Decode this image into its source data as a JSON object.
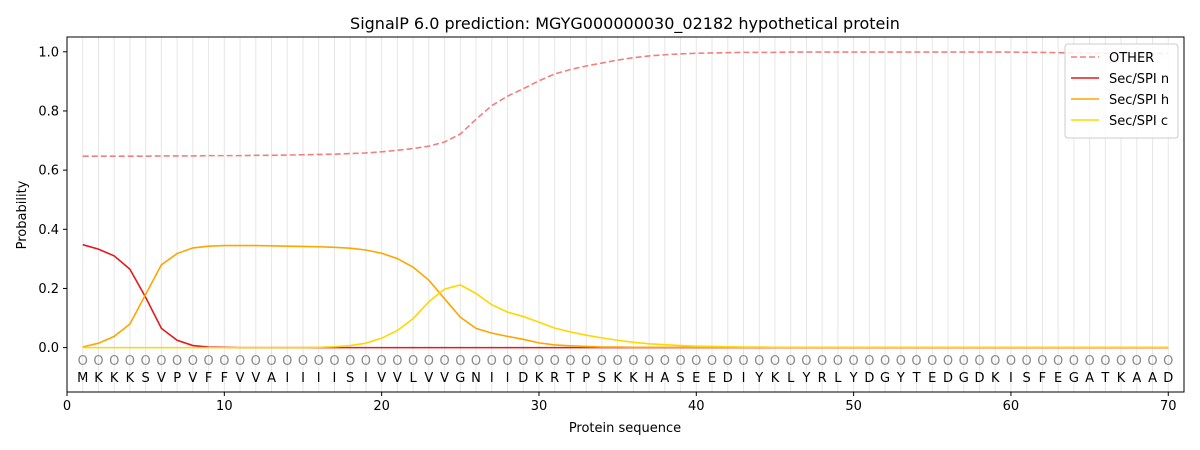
{
  "chart_data": {
    "type": "line",
    "title": "SignalP 6.0 prediction: MGYG000000030_02182 hypothetical protein",
    "xlabel": "Protein sequence",
    "ylabel": "Probability",
    "xlim": [
      0,
      71
    ],
    "ylim": [
      -0.15,
      1.05
    ],
    "xticks": [
      0,
      10,
      20,
      30,
      40,
      50,
      60,
      70
    ],
    "yticks": [
      0.0,
      0.2,
      0.4,
      0.6,
      0.8,
      1.0
    ],
    "ytick_labels": [
      "0.0",
      "0.2",
      "0.4",
      "0.6",
      "0.8",
      "1.0"
    ],
    "grid": "vertical lines at each residue",
    "legend_position": "top-right",
    "sequence": [
      "M",
      "K",
      "K",
      "K",
      "S",
      "V",
      "P",
      "V",
      "F",
      "F",
      "V",
      "V",
      "A",
      "I",
      "I",
      "I",
      "I",
      "S",
      "I",
      "V",
      "V",
      "L",
      "V",
      "V",
      "G",
      "N",
      "I",
      "I",
      "D",
      "K",
      "R",
      "T",
      "P",
      "S",
      "K",
      "K",
      "H",
      "A",
      "S",
      "E",
      "E",
      "D",
      "I",
      "Y",
      "K",
      "L",
      "Y",
      "R",
      "L",
      "Y",
      "D",
      "G",
      "Y",
      "T",
      "E",
      "D",
      "G",
      "D",
      "K",
      "I",
      "S",
      "F",
      "E",
      "G",
      "A",
      "T",
      "K",
      "A",
      "A",
      "D"
    ],
    "residue_marker": "O",
    "series": [
      {
        "name": "OTHER",
        "color": "#f08080",
        "dash": true,
        "values": [
          0.647,
          0.647,
          0.647,
          0.647,
          0.647,
          0.648,
          0.648,
          0.648,
          0.649,
          0.649,
          0.649,
          0.65,
          0.65,
          0.651,
          0.652,
          0.653,
          0.654,
          0.656,
          0.658,
          0.662,
          0.667,
          0.673,
          0.681,
          0.695,
          0.722,
          0.772,
          0.818,
          0.85,
          0.875,
          0.902,
          0.925,
          0.94,
          0.952,
          0.962,
          0.972,
          0.98,
          0.986,
          0.99,
          0.993,
          0.995,
          0.996,
          0.997,
          0.998,
          0.998,
          0.998,
          0.999,
          0.999,
          0.999,
          0.999,
          0.999,
          0.999,
          0.999,
          0.999,
          0.999,
          0.999,
          0.999,
          0.999,
          0.999,
          0.999,
          0.999,
          0.998,
          0.998,
          0.997,
          0.996,
          0.995,
          0.995,
          0.994,
          0.994,
          0.994,
          0.994
        ]
      },
      {
        "name": "Sec/SPI n",
        "color": "#e31a1c",
        "dash": false,
        "values": [
          0.348,
          0.333,
          0.31,
          0.265,
          0.17,
          0.065,
          0.025,
          0.007,
          0.002,
          0.001,
          0.0,
          0.0,
          0.0,
          0.0,
          0.0,
          0.0,
          0.0,
          0.0,
          0.0,
          0.0,
          0.0,
          0.0,
          0.0,
          0.0,
          0.0,
          0.0,
          0.0,
          0.0,
          0.0,
          0.0,
          0.0,
          0.0,
          0.0,
          0.0,
          0.0,
          0.0,
          0.0,
          0.0,
          0.0,
          0.0,
          0.0,
          0.0,
          0.0,
          0.0,
          0.0,
          0.0,
          0.0,
          0.0,
          0.0,
          0.0,
          0.0,
          0.0,
          0.0,
          0.0,
          0.0,
          0.0,
          0.0,
          0.0,
          0.0,
          0.0,
          0.0,
          0.0,
          0.0,
          0.0,
          0.0,
          0.0,
          0.0,
          0.0,
          0.0,
          0.0
        ]
      },
      {
        "name": "Sec/SPI h",
        "color": "#ffa500",
        "dash": false,
        "values": [
          0.002,
          0.015,
          0.038,
          0.08,
          0.18,
          0.28,
          0.318,
          0.337,
          0.343,
          0.345,
          0.345,
          0.345,
          0.344,
          0.343,
          0.342,
          0.341,
          0.339,
          0.336,
          0.33,
          0.319,
          0.301,
          0.272,
          0.228,
          0.165,
          0.103,
          0.065,
          0.049,
          0.038,
          0.028,
          0.016,
          0.009,
          0.006,
          0.004,
          0.002,
          0.002,
          0.001,
          0.001,
          0.001,
          0.001,
          0.001,
          0.001,
          0.001,
          0.001,
          0.001,
          0.001,
          0.001,
          0.001,
          0.001,
          0.001,
          0.001,
          0.001,
          0.001,
          0.001,
          0.001,
          0.001,
          0.001,
          0.001,
          0.001,
          0.001,
          0.001,
          0.001,
          0.001,
          0.001,
          0.001,
          0.001,
          0.001,
          0.001,
          0.001,
          0.001,
          0.001
        ]
      },
      {
        "name": "Sec/SPI c",
        "color": "#ffd700",
        "dash": false,
        "values": [
          0.0,
          0.0,
          0.0,
          0.0,
          0.0,
          0.0,
          0.0,
          0.0,
          0.0,
          0.0,
          0.0,
          0.0,
          0.0,
          0.0,
          0.0,
          0.001,
          0.003,
          0.007,
          0.015,
          0.032,
          0.058,
          0.098,
          0.155,
          0.198,
          0.212,
          0.183,
          0.145,
          0.12,
          0.105,
          0.086,
          0.066,
          0.053,
          0.042,
          0.033,
          0.025,
          0.018,
          0.013,
          0.01,
          0.007,
          0.005,
          0.004,
          0.003,
          0.002,
          0.002,
          0.001,
          0.001,
          0.001,
          0.001,
          0.001,
          0.001,
          0.001,
          0.001,
          0.001,
          0.001,
          0.001,
          0.001,
          0.001,
          0.001,
          0.001,
          0.001,
          0.001,
          0.001,
          0.001,
          0.001,
          0.001,
          0.001,
          0.001,
          0.001,
          0.001,
          0.001
        ]
      }
    ]
  }
}
